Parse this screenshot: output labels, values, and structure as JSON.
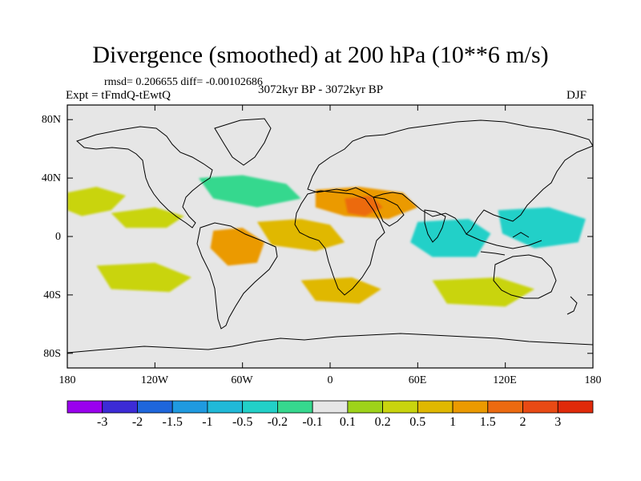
{
  "title": "Divergence (smoothed) at 200 hPa (10**6 m/s)",
  "stats": "rmsd= 0.206655  diff= -0.00102686",
  "experiment": "Expt = tFmdQ-tEwtQ",
  "period": "3072kyr BP - 3072kyr BP",
  "season": "DJF",
  "lat_labels": [
    "80N",
    "40N",
    "0",
    "40S",
    "80S"
  ],
  "lon_labels": [
    "180",
    "120W",
    "60W",
    "0",
    "60E",
    "120E",
    "180"
  ],
  "colorbar": {
    "labels": [
      "-3",
      "-2",
      "-1.5",
      "-1",
      "-0.5",
      "-0.2",
      "-0.1",
      "0.1",
      "0.2",
      "0.5",
      "1",
      "1.5",
      "2",
      "3"
    ],
    "colors": [
      "#9a00ee",
      "#3c2bd6",
      "#1e66dc",
      "#1f9ae0",
      "#20b9d8",
      "#22d0c8",
      "#36d88e",
      "#e6e6e6",
      "#9ed31a",
      "#c9d40e",
      "#e0b800",
      "#eb9a00",
      "#ec6a10",
      "#e84a14",
      "#e02a0a"
    ]
  },
  "chart_data": {
    "type": "map-contour",
    "variable": "Divergence (smoothed) at 200 hPa",
    "units": "10**6 m/s",
    "projection": "cylindrical equidistant",
    "lon_range": [
      -180,
      180
    ],
    "lat_range": [
      -90,
      90
    ],
    "levels": [
      -3,
      -2,
      -1.5,
      -1,
      -0.5,
      -0.2,
      -0.1,
      0.1,
      0.2,
      0.5,
      1,
      1.5,
      2,
      3
    ],
    "rmsd": 0.206655,
    "diff": -0.00102686,
    "features": [
      {
        "name": "north-pacific-green",
        "lon": -160,
        "lat": 22,
        "value": 0.2
      },
      {
        "name": "central-pacific-green",
        "lon": -130,
        "lat": 12,
        "value": 0.2
      },
      {
        "name": "north-atlantic-cyan",
        "lon": -55,
        "lat": 28,
        "value": -0.2
      },
      {
        "name": "africa-arabia-positive",
        "lon": 35,
        "lat": 22,
        "value": 1.0
      },
      {
        "name": "arabian-orange-core",
        "lon": 22,
        "lat": 20,
        "value": 1.5
      },
      {
        "name": "equatorial-atlantic-positive",
        "lon": -25,
        "lat": 2,
        "value": 0.5
      },
      {
        "name": "south-america-orange",
        "lon": -65,
        "lat": -8,
        "value": 1.0
      },
      {
        "name": "indian-ocean-negative",
        "lon": 85,
        "lat": -5,
        "value": -0.5
      },
      {
        "name": "west-pacific-negative",
        "lon": 140,
        "lat": 5,
        "value": -0.5
      },
      {
        "name": "south-pacific-green",
        "lon": -120,
        "lat": -28,
        "value": 0.2
      },
      {
        "name": "south-atlantic-yellow",
        "lon": 10,
        "lat": -38,
        "value": 0.5
      },
      {
        "name": "south-indian-green",
        "lon": 110,
        "lat": -38,
        "value": 0.2
      }
    ]
  }
}
